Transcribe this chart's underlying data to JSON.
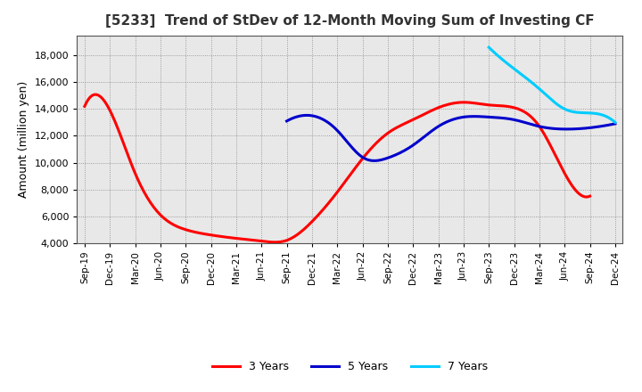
{
  "title": "[5233]  Trend of StDev of 12-Month Moving Sum of Investing CF",
  "ylabel": "Amount (million yen)",
  "background_color": "#ffffff",
  "plot_bg_color": "#e8e8e8",
  "grid_color": "#aaaaaa",
  "ylim": [
    4000,
    19500
  ],
  "yticks": [
    4000,
    6000,
    8000,
    10000,
    12000,
    14000,
    16000,
    18000
  ],
  "x_labels": [
    "Sep-19",
    "Dec-19",
    "Mar-20",
    "Jun-20",
    "Sep-20",
    "Dec-20",
    "Mar-21",
    "Jun-21",
    "Sep-21",
    "Dec-21",
    "Mar-22",
    "Jun-22",
    "Sep-22",
    "Dec-22",
    "Mar-23",
    "Jun-23",
    "Sep-23",
    "Dec-23",
    "Mar-24",
    "Jun-24",
    "Sep-24",
    "Dec-24"
  ],
  "series": {
    "3 Years": {
      "color": "#ff0000",
      "data": {
        "Sep-19": 14200,
        "Dec-19": 13900,
        "Mar-20": 9200,
        "Jun-20": 6100,
        "Sep-20": 5000,
        "Dec-20": 4600,
        "Mar-21": 4350,
        "Jun-21": 4150,
        "Sep-21": 4200,
        "Dec-21": 5600,
        "Mar-22": 7800,
        "Jun-22": 10300,
        "Sep-22": 12200,
        "Dec-22": 13200,
        "Mar-23": 14100,
        "Jun-23": 14500,
        "Sep-23": 14300,
        "Dec-23": 14100,
        "Mar-24": 12700,
        "Jun-24": 9200,
        "Sep-24": 7500,
        "Dec-24": null
      }
    },
    "5 Years": {
      "color": "#0000cc",
      "data": {
        "Sep-19": null,
        "Dec-19": null,
        "Mar-20": null,
        "Jun-20": null,
        "Sep-20": null,
        "Dec-20": null,
        "Mar-21": null,
        "Jun-21": null,
        "Sep-21": 13100,
        "Dec-21": 13500,
        "Mar-22": 12400,
        "Jun-22": 10400,
        "Sep-22": 10350,
        "Dec-22": 11300,
        "Mar-23": 12700,
        "Jun-23": 13400,
        "Sep-23": 13400,
        "Dec-23": 13200,
        "Mar-24": 12700,
        "Jun-24": 12500,
        "Sep-24": 12600,
        "Dec-24": 12900
      }
    },
    "7 Years": {
      "color": "#00ccff",
      "data": {
        "Sep-19": null,
        "Dec-19": null,
        "Mar-20": null,
        "Jun-20": null,
        "Sep-20": null,
        "Dec-20": null,
        "Mar-21": null,
        "Jun-21": null,
        "Sep-21": null,
        "Dec-21": null,
        "Mar-22": null,
        "Jun-22": null,
        "Sep-22": null,
        "Dec-22": null,
        "Mar-23": null,
        "Jun-23": null,
        "Sep-23": 18600,
        "Dec-23": 17000,
        "Mar-24": 15500,
        "Jun-24": 14000,
        "Sep-24": 13700,
        "Dec-24": 13000
      }
    },
    "10 Years": {
      "color": "#008800",
      "data": {
        "Sep-19": null,
        "Dec-19": null,
        "Mar-20": null,
        "Jun-20": null,
        "Sep-20": null,
        "Dec-20": null,
        "Mar-21": null,
        "Jun-21": null,
        "Sep-21": null,
        "Dec-21": null,
        "Mar-22": null,
        "Jun-22": null,
        "Sep-22": null,
        "Dec-22": null,
        "Mar-23": null,
        "Jun-23": null,
        "Sep-23": null,
        "Dec-23": null,
        "Mar-24": null,
        "Jun-24": null,
        "Sep-24": null,
        "Dec-24": null
      }
    }
  }
}
